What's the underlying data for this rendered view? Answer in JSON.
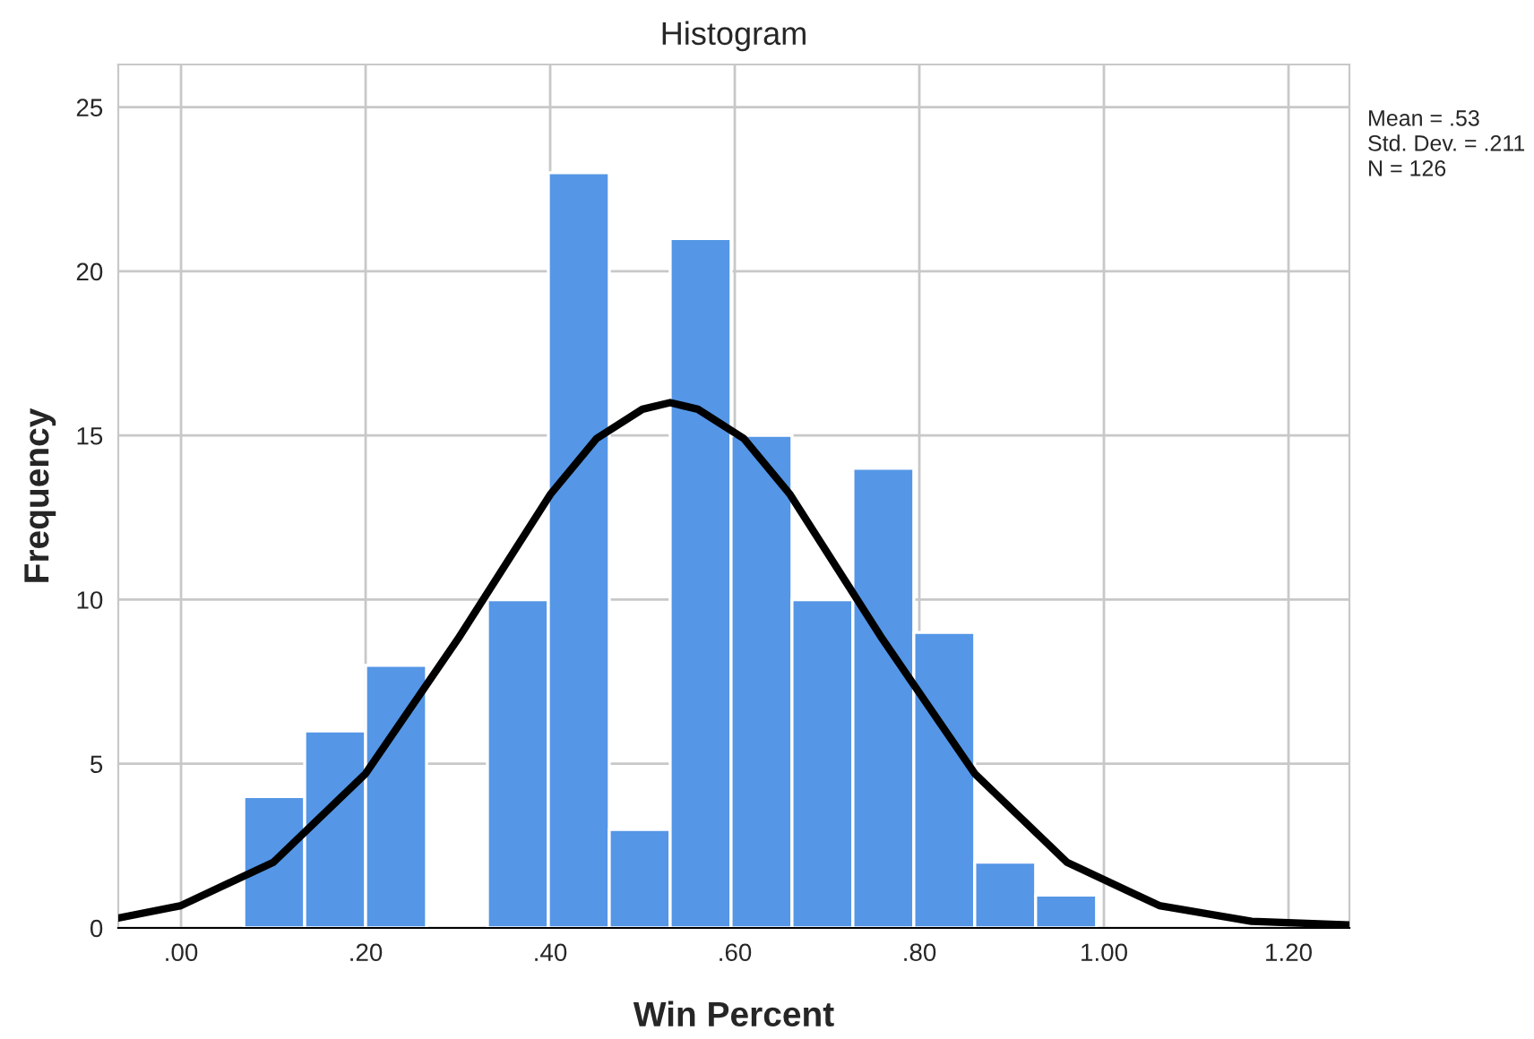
{
  "chart_data": {
    "type": "histogram",
    "title": "Histogram",
    "xlabel": "Win Percent",
    "ylabel": "Frequency",
    "bins": [
      0.068,
      0.134,
      0.2,
      0.266,
      0.332,
      0.398,
      0.464,
      0.53,
      0.596,
      0.662,
      0.728,
      0.794,
      0.86,
      0.926,
      0.992
    ],
    "values": [
      4,
      6,
      8,
      0,
      10,
      23,
      3,
      21,
      15,
      10,
      14,
      9,
      2,
      1
    ],
    "color": "#5596e6",
    "series": [
      {
        "type": "line",
        "color": "#000000",
        "x": [
          -0.068,
          0,
          0.1,
          0.2,
          0.3,
          0.4,
          0.45,
          0.5,
          0.53,
          0.56,
          0.61,
          0.66,
          0.76,
          0.86,
          0.96,
          1.06,
          1.16,
          1.266
        ],
        "values": [
          0.3,
          0.68,
          2.0,
          4.7,
          8.8,
          13.2,
          14.9,
          15.8,
          16,
          15.8,
          14.9,
          13.2,
          8.8,
          4.7,
          2.0,
          0.68,
          0.2,
          0.09
        ]
      }
    ],
    "xlim": [
      -0.068,
      1.266
    ],
    "ylim": [
      0,
      26.3
    ],
    "xticks": [
      {
        "value": 0,
        "label": ".00"
      },
      {
        "value": 0.2,
        "label": ".20"
      },
      {
        "value": 0.4,
        "label": ".40"
      },
      {
        "value": 0.6,
        "label": ".60"
      },
      {
        "value": 0.8,
        "label": ".80"
      },
      {
        "value": 1.0,
        "label": "1.00"
      },
      {
        "value": 1.2,
        "label": "1.20"
      }
    ],
    "yticks": [
      0,
      5,
      10,
      15,
      20,
      25
    ],
    "grid": true,
    "annotations": [
      "Mean = .53",
      "Std. Dev. = .211",
      "N = 126"
    ]
  }
}
